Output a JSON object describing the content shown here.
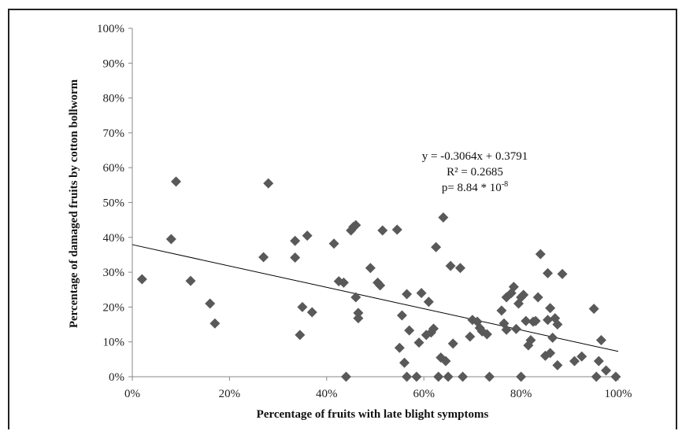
{
  "chart_data": {
    "type": "scatter",
    "xlabel": "Percentage of fruits with late blight symptoms",
    "ylabel": "Percentage of damaged fruits by cotton bollworm",
    "xlim": [
      0,
      1
    ],
    "ylim": [
      0,
      1
    ],
    "x_ticks": [
      "0%",
      "20%",
      "40%",
      "60%",
      "80%",
      "100%"
    ],
    "y_ticks": [
      "0%",
      "10%",
      "20%",
      "30%",
      "40%",
      "50%",
      "60%",
      "70%",
      "80%",
      "90%",
      "100%"
    ],
    "grid": false,
    "marker": "diamond",
    "marker_color": "#595959",
    "trendline": {
      "slope": -0.3064,
      "intercept": 0.3791,
      "color": "#000000"
    },
    "annotation": {
      "equation": "y = -0.3064x + 0.3791",
      "r2": "R² = 0.2685",
      "p_prefix": "p= 8.84 * 10",
      "p_exponent": "-8"
    },
    "points": [
      {
        "x": 0.02,
        "y": 0.28
      },
      {
        "x": 0.08,
        "y": 0.395
      },
      {
        "x": 0.09,
        "y": 0.56
      },
      {
        "x": 0.12,
        "y": 0.275
      },
      {
        "x": 0.16,
        "y": 0.21
      },
      {
        "x": 0.17,
        "y": 0.153
      },
      {
        "x": 0.27,
        "y": 0.343
      },
      {
        "x": 0.28,
        "y": 0.555
      },
      {
        "x": 0.335,
        "y": 0.39
      },
      {
        "x": 0.335,
        "y": 0.342
      },
      {
        "x": 0.345,
        "y": 0.12
      },
      {
        "x": 0.35,
        "y": 0.2
      },
      {
        "x": 0.36,
        "y": 0.405
      },
      {
        "x": 0.37,
        "y": 0.185
      },
      {
        "x": 0.415,
        "y": 0.382
      },
      {
        "x": 0.425,
        "y": 0.274
      },
      {
        "x": 0.435,
        "y": 0.27
      },
      {
        "x": 0.44,
        "y": 0.0
      },
      {
        "x": 0.45,
        "y": 0.42
      },
      {
        "x": 0.455,
        "y": 0.43
      },
      {
        "x": 0.46,
        "y": 0.435
      },
      {
        "x": 0.46,
        "y": 0.228
      },
      {
        "x": 0.465,
        "y": 0.183
      },
      {
        "x": 0.465,
        "y": 0.168
      },
      {
        "x": 0.49,
        "y": 0.312
      },
      {
        "x": 0.505,
        "y": 0.27
      },
      {
        "x": 0.51,
        "y": 0.262
      },
      {
        "x": 0.515,
        "y": 0.42
      },
      {
        "x": 0.545,
        "y": 0.422
      },
      {
        "x": 0.55,
        "y": 0.083
      },
      {
        "x": 0.555,
        "y": 0.176
      },
      {
        "x": 0.56,
        "y": 0.04
      },
      {
        "x": 0.565,
        "y": 0.237
      },
      {
        "x": 0.565,
        "y": 0.0
      },
      {
        "x": 0.57,
        "y": 0.133
      },
      {
        "x": 0.585,
        "y": 0.0
      },
      {
        "x": 0.59,
        "y": 0.098
      },
      {
        "x": 0.595,
        "y": 0.24
      },
      {
        "x": 0.61,
        "y": 0.215
      },
      {
        "x": 0.605,
        "y": 0.12
      },
      {
        "x": 0.615,
        "y": 0.127
      },
      {
        "x": 0.62,
        "y": 0.138
      },
      {
        "x": 0.625,
        "y": 0.372
      },
      {
        "x": 0.63,
        "y": 0.0
      },
      {
        "x": 0.635,
        "y": 0.055
      },
      {
        "x": 0.64,
        "y": 0.457
      },
      {
        "x": 0.645,
        "y": 0.045
      },
      {
        "x": 0.65,
        "y": 0.0
      },
      {
        "x": 0.655,
        "y": 0.318
      },
      {
        "x": 0.66,
        "y": 0.095
      },
      {
        "x": 0.675,
        "y": 0.312
      },
      {
        "x": 0.68,
        "y": 0.0
      },
      {
        "x": 0.695,
        "y": 0.115
      },
      {
        "x": 0.7,
        "y": 0.163
      },
      {
        "x": 0.71,
        "y": 0.158
      },
      {
        "x": 0.715,
        "y": 0.14
      },
      {
        "x": 0.72,
        "y": 0.13
      },
      {
        "x": 0.73,
        "y": 0.122
      },
      {
        "x": 0.735,
        "y": 0.0
      },
      {
        "x": 0.76,
        "y": 0.19
      },
      {
        "x": 0.765,
        "y": 0.153
      },
      {
        "x": 0.77,
        "y": 0.228
      },
      {
        "x": 0.77,
        "y": 0.135
      },
      {
        "x": 0.78,
        "y": 0.24
      },
      {
        "x": 0.785,
        "y": 0.258
      },
      {
        "x": 0.79,
        "y": 0.137
      },
      {
        "x": 0.795,
        "y": 0.21
      },
      {
        "x": 0.8,
        "y": 0.0
      },
      {
        "x": 0.8,
        "y": 0.228
      },
      {
        "x": 0.805,
        "y": 0.235
      },
      {
        "x": 0.81,
        "y": 0.16
      },
      {
        "x": 0.815,
        "y": 0.09
      },
      {
        "x": 0.82,
        "y": 0.105
      },
      {
        "x": 0.825,
        "y": 0.158
      },
      {
        "x": 0.83,
        "y": 0.16
      },
      {
        "x": 0.835,
        "y": 0.228
      },
      {
        "x": 0.84,
        "y": 0.352
      },
      {
        "x": 0.85,
        "y": 0.06
      },
      {
        "x": 0.855,
        "y": 0.297
      },
      {
        "x": 0.855,
        "y": 0.163
      },
      {
        "x": 0.86,
        "y": 0.197
      },
      {
        "x": 0.86,
        "y": 0.068
      },
      {
        "x": 0.865,
        "y": 0.112
      },
      {
        "x": 0.87,
        "y": 0.168
      },
      {
        "x": 0.875,
        "y": 0.033
      },
      {
        "x": 0.875,
        "y": 0.15
      },
      {
        "x": 0.885,
        "y": 0.295
      },
      {
        "x": 0.91,
        "y": 0.045
      },
      {
        "x": 0.925,
        "y": 0.058
      },
      {
        "x": 0.95,
        "y": 0.195
      },
      {
        "x": 0.955,
        "y": 0.0
      },
      {
        "x": 0.96,
        "y": 0.045
      },
      {
        "x": 0.965,
        "y": 0.105
      },
      {
        "x": 0.975,
        "y": 0.018
      },
      {
        "x": 0.995,
        "y": 0.0
      }
    ]
  }
}
